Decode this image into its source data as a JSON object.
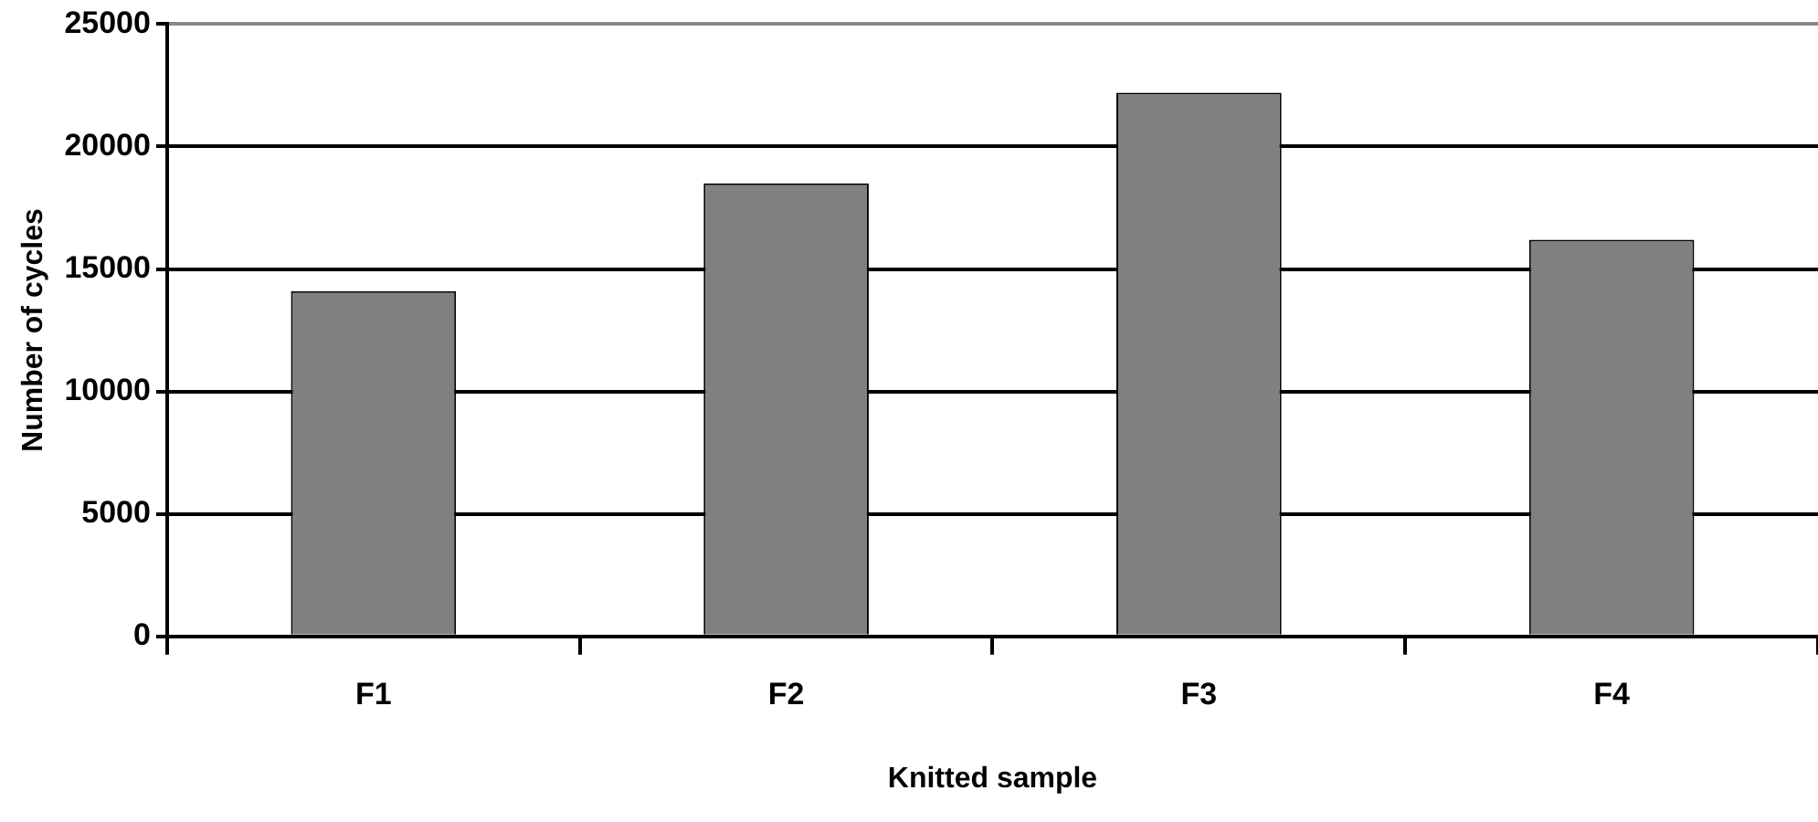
{
  "chart_data": {
    "type": "bar",
    "xlabel": "Knitted sample",
    "ylabel": "Number of cycles",
    "categories": [
      "F1",
      "F2",
      "F3",
      "F4"
    ],
    "values": [
      14100,
      18500,
      22200,
      16200
    ],
    "color": "#808080",
    "ylim": [
      0,
      25000
    ],
    "yticks": [
      0,
      5000,
      10000,
      15000,
      20000,
      25000
    ],
    "grid": "y",
    "legend": false
  }
}
